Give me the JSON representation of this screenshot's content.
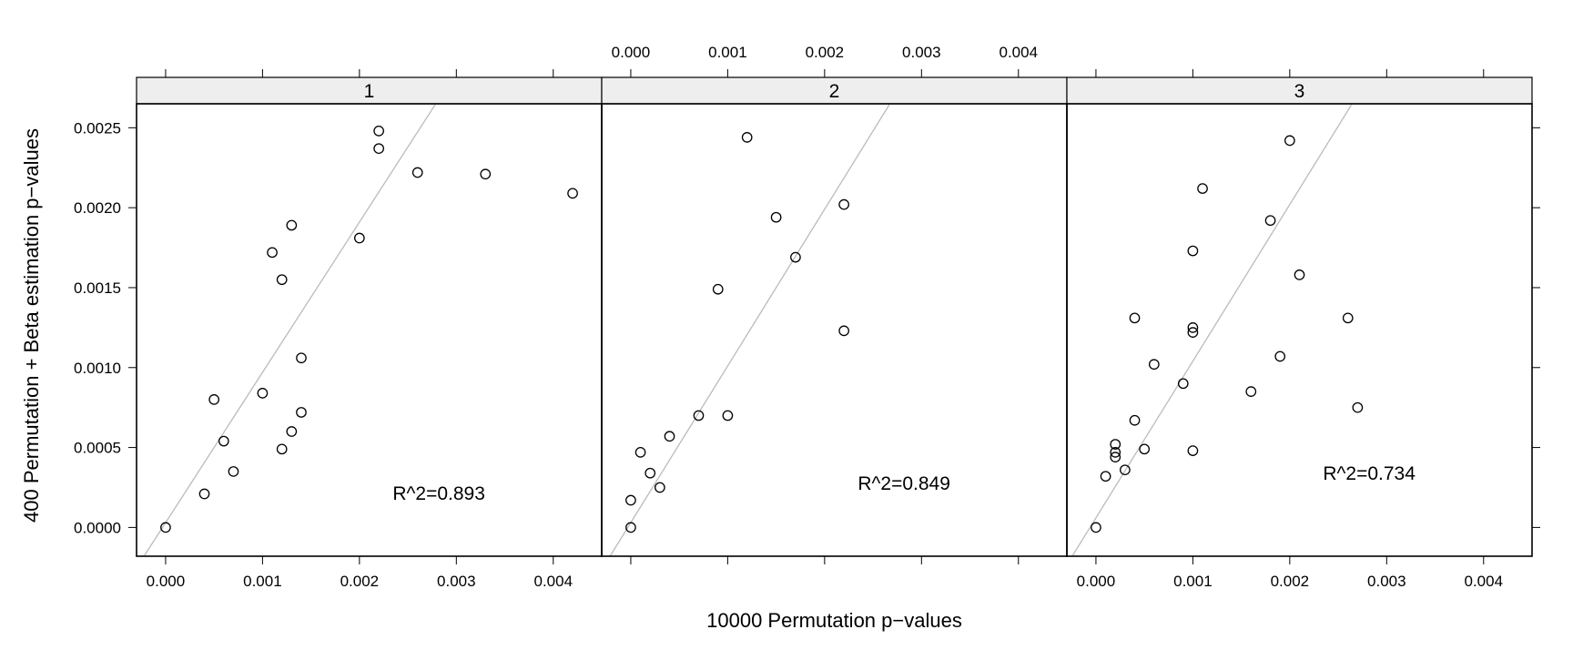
{
  "chart_data": {
    "type": "scatter",
    "title": "",
    "xlabel": "10000 Permutation p−values",
    "ylabel": "400 Permutation + Beta estimation p−values",
    "xlim": [
      -0.0003,
      0.0045
    ],
    "ylim": [
      -0.00018,
      0.00265
    ],
    "x_ticks": [
      0,
      0.001,
      0.002,
      0.003,
      0.004
    ],
    "x_tick_labels": [
      "0.000",
      "0.001",
      "0.002",
      "0.003",
      "0.004"
    ],
    "y_ticks": [
      0,
      0.0005,
      0.001,
      0.0015,
      0.002,
      0.0025
    ],
    "y_tick_labels": [
      "0.0000",
      "0.0005",
      "0.0010",
      "0.0015",
      "0.0020",
      "0.0025"
    ],
    "strip_color": "#eeeeee",
    "point_color": "#000000",
    "line_color": "#bbbbbb",
    "panels": [
      {
        "label": "1",
        "annotation": "R^2=0.893",
        "fit_line": {
          "intercept": 3e-05,
          "slope": 0.94
        },
        "points": [
          [
            0,
            0
          ],
          [
            0.0004,
            0.00021
          ],
          [
            0.0005,
            0.0008
          ],
          [
            0.0006,
            0.00054
          ],
          [
            0.0007,
            0.00035
          ],
          [
            0.001,
            0.00084
          ],
          [
            0.0011,
            0.00172
          ],
          [
            0.0012,
            0.00155
          ],
          [
            0.0012,
            0.00049
          ],
          [
            0.0013,
            0.00189
          ],
          [
            0.0013,
            0.0006
          ],
          [
            0.0014,
            0.00106
          ],
          [
            0.0014,
            0.00072
          ],
          [
            0.002,
            0.00181
          ],
          [
            0.0022,
            0.00248
          ],
          [
            0.0022,
            0.00237
          ],
          [
            0.0026,
            0.00222
          ],
          [
            0.0033,
            0.00221
          ],
          [
            0.0042,
            0.00209
          ]
        ]
      },
      {
        "label": "2",
        "annotation": "R^2=0.849",
        "fit_line": {
          "intercept": 3e-05,
          "slope": 0.98
        },
        "points": [
          [
            0,
            0
          ],
          [
            0,
            0.00017
          ],
          [
            0.0001,
            0.00047
          ],
          [
            0.0002,
            0.00034
          ],
          [
            0.0003,
            0.00025
          ],
          [
            0.0004,
            0.00057
          ],
          [
            0.0007,
            0.0007
          ],
          [
            0.0009,
            0.00149
          ],
          [
            0.001,
            0.0007
          ],
          [
            0.0012,
            0.00244
          ],
          [
            0.0015,
            0.00194
          ],
          [
            0.0017,
            0.00169
          ],
          [
            0.0022,
            0.00202
          ],
          [
            0.0022,
            0.00123
          ]
        ]
      },
      {
        "label": "3",
        "annotation": "R^2=0.734",
        "fit_line": {
          "intercept": 6e-05,
          "slope": 0.98
        },
        "points": [
          [
            0,
            0
          ],
          [
            0.0001,
            0.00032
          ],
          [
            0.0002,
            0.00052
          ],
          [
            0.0002,
            0.00047
          ],
          [
            0.0002,
            0.00044
          ],
          [
            0.0003,
            0.00036
          ],
          [
            0.0004,
            0.00131
          ],
          [
            0.0004,
            0.00067
          ],
          [
            0.0005,
            0.00049
          ],
          [
            0.0006,
            0.00102
          ],
          [
            0.0009,
            0.0009
          ],
          [
            0.001,
            0.00173
          ],
          [
            0.001,
            0.00125
          ],
          [
            0.001,
            0.00122
          ],
          [
            0.001,
            0.00048
          ],
          [
            0.0011,
            0.00212
          ],
          [
            0.0016,
            0.00085
          ],
          [
            0.0018,
            0.00192
          ],
          [
            0.0019,
            0.00107
          ],
          [
            0.002,
            0.00242
          ],
          [
            0.0021,
            0.00158
          ],
          [
            0.0026,
            0.00131
          ],
          [
            0.0027,
            0.00075
          ]
        ]
      }
    ]
  }
}
